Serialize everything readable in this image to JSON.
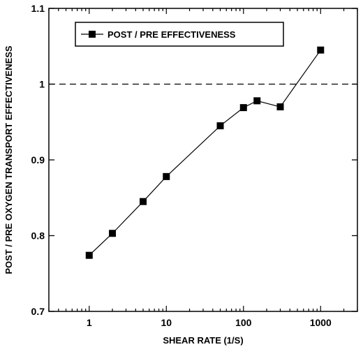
{
  "chart_data": {
    "type": "line",
    "title": "",
    "xlabel": "SHEAR RATE (1/S)",
    "ylabel": "POST / PRE OXYGEN TRANSPORT EFFECTIVENESS",
    "xscale": "log",
    "xlim": [
      0.3,
      3000
    ],
    "ylim": [
      0.7,
      1.1
    ],
    "x_ticks": [
      1,
      10,
      100,
      1000
    ],
    "x_tick_labels": [
      "1",
      "10",
      "100",
      "1000"
    ],
    "y_ticks": [
      0.7,
      0.8,
      0.9,
      1.0,
      1.1
    ],
    "y_tick_labels": [
      "0.7",
      "0.8",
      "0.9",
      "1",
      "1.1"
    ],
    "grid": false,
    "legend_position": "top-left",
    "reference_line": {
      "y": 1.0,
      "style": "dashed"
    },
    "series": [
      {
        "name": "POST / PRE EFFECTIVENESS",
        "marker": "square",
        "color": "#000000",
        "x": [
          1,
          2,
          5,
          10,
          50,
          100,
          150,
          300,
          1000
        ],
        "y": [
          0.774,
          0.803,
          0.845,
          0.878,
          0.945,
          0.969,
          0.978,
          0.97,
          1.045
        ]
      }
    ]
  }
}
